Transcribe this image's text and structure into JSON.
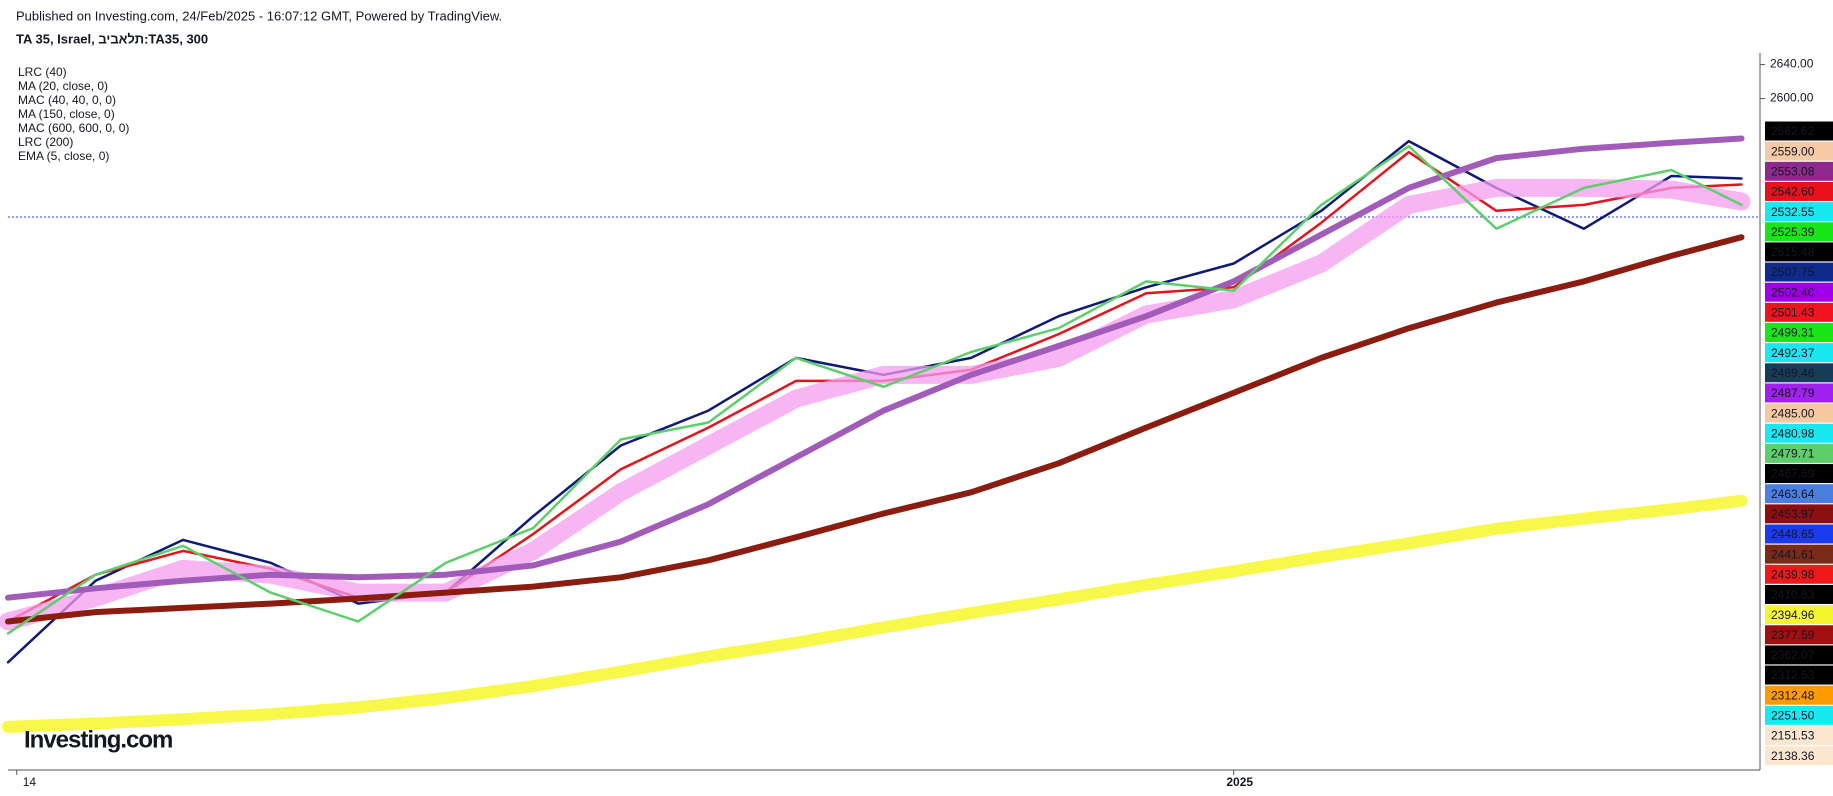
{
  "header": {
    "published": "Published on Investing.com, 24/Feb/2025 - 16:07:12 GMT, Powered by TradingView.",
    "symbol": "TA 35, Israel, תלאביב:TA35, 300"
  },
  "logo": "Investing.com",
  "chart_data": {
    "type": "line",
    "x": [
      0,
      5,
      10,
      15,
      20,
      25,
      30,
      35,
      40,
      45,
      50,
      55,
      60,
      65,
      70,
      75,
      80,
      85,
      90,
      95,
      99
    ],
    "xlim": [
      0,
      100
    ],
    "xticks": [
      {
        "value": 0.5,
        "label": "14"
      },
      {
        "value": 70,
        "label": "2025"
      }
    ],
    "ylim": [
      1812.7,
      2653.6
    ],
    "yticks": [
      {
        "value": 2600,
        "label": "2600.00"
      },
      {
        "value": 2640,
        "label": "2640.00"
      }
    ],
    "series": [
      {
        "name": "LRC (40)",
        "color": "#0d1a7a",
        "width": 2.5,
        "values": [
          1937,
          2033,
          2081,
          2054,
          2006,
          2019,
          2109,
          2192,
          2233,
          2295,
          2275,
          2295,
          2344,
          2378,
          2406,
          2468,
          2550,
          2495,
          2447,
          2509,
          2506
        ]
      },
      {
        "name": "MA (20, close, 0)",
        "color": "#e8131a",
        "width": 2.5,
        "values": [
          1985,
          2040,
          2068,
          2047,
          2013,
          2019,
          2088,
          2164,
          2213,
          2268,
          2268,
          2281,
          2323,
          2371,
          2378,
          2454,
          2537,
          2468,
          2475,
          2495,
          2499
        ]
      },
      {
        "name": "MAC (40, 40, 0, 0)",
        "color": "#f59cf0",
        "width": 18,
        "values": [
          1985,
          2013,
          2047,
          2040,
          2019,
          2019,
          2068,
          2137,
          2192,
          2247,
          2275,
          2275,
          2295,
          2346,
          2364,
          2406,
          2475,
          2495,
          2495,
          2493,
          2479
        ]
      },
      {
        "name": "MA (150, close, 0)",
        "color": "#a05cb8",
        "width": 6,
        "values": [
          2013,
          2024,
          2033,
          2040,
          2037,
          2040,
          2051,
          2079,
          2123,
          2178,
          2233,
          2275,
          2309,
          2344,
          2385,
          2440,
          2495,
          2530,
          2541,
          2548,
          2553
        ]
      },
      {
        "name": "MAC (600, 600, 0, 0)",
        "color": "#8b1c10",
        "width": 6,
        "values": [
          1985,
          1996,
          2001,
          2006,
          2012,
          2019,
          2026,
          2037,
          2057,
          2084,
          2112,
          2137,
          2171,
          2213,
          2254,
          2295,
          2330,
          2360,
          2385,
          2415,
          2437
        ]
      },
      {
        "name": "LRC (200)",
        "color": "#f8f84a",
        "width": 12,
        "values": [
          1861,
          1865,
          1870,
          1876,
          1884,
          1895,
          1909,
          1926,
          1944,
          1960,
          1978,
          1995,
          2011,
          2028,
          2044,
          2061,
          2077,
          2094,
          2106,
          2117,
          2127
        ]
      },
      {
        "name": "EMA (5, close, 0)",
        "color": "#5ccf6a",
        "width": 2.5,
        "values": [
          1971,
          2040,
          2074,
          2019,
          1985,
          2054,
          2095,
          2199,
          2219,
          2295,
          2261,
          2302,
          2330,
          2385,
          2374,
          2475,
          2544,
          2447,
          2495,
          2516,
          2475
        ]
      }
    ],
    "price_tags": [
      {
        "value": 2562.62,
        "color": "#000000"
      },
      {
        "value": 2559,
        "label": "2559.00",
        "color": "#f7c9a4"
      },
      {
        "value": 2553.08,
        "color": "#8e2a8e"
      },
      {
        "value": 2542.6,
        "label": "2542.60",
        "color": "#e8131a"
      },
      {
        "value": 2532.55,
        "color": "#18e8f0"
      },
      {
        "value": 2525.39,
        "color": "#19e619"
      },
      {
        "value": 2515.48,
        "color": "#000000"
      },
      {
        "value": 2507.75,
        "color": "#102a8c"
      },
      {
        "value": 2502.4,
        "label": "2502.40",
        "color": "#a000e8"
      },
      {
        "value": 2501.43,
        "color": "#f0141e"
      },
      {
        "value": 2499.31,
        "color": "#19e619"
      },
      {
        "value": 2492.37,
        "color": "#18e8f0"
      },
      {
        "value": 2489.46,
        "color": "#163c5a"
      },
      {
        "value": 2487.79,
        "color": "#a020f0"
      },
      {
        "value": 2485,
        "label": "2485.00",
        "color": "#f8c8a0"
      },
      {
        "value": 2480.98,
        "color": "#18e8f0"
      },
      {
        "value": 2479.71,
        "color": "#5ccf6a"
      },
      {
        "value": 2467.69,
        "color": "#000000"
      },
      {
        "value": 2463.64,
        "color": "#4a7ee0"
      },
      {
        "value": 2453.97,
        "color": "#8c1010"
      },
      {
        "value": 2448.65,
        "color": "#1a3cf0"
      },
      {
        "value": 2441.61,
        "color": "#7a2a18"
      },
      {
        "value": 2439.98,
        "color": "#f01818"
      },
      {
        "value": 2410.83,
        "color": "#000000"
      },
      {
        "value": 2394.96,
        "color": "#f5f530"
      },
      {
        "value": 2377.59,
        "color": "#a01010"
      },
      {
        "value": 2362.07,
        "color": "#000000"
      },
      {
        "value": 2312.53,
        "color": "#000000"
      },
      {
        "value": 2312.48,
        "color": "#ff9a00"
      },
      {
        "value": 2251.5,
        "label": "2251.50",
        "color": "#18e8f0"
      },
      {
        "value": 2151.53,
        "color": "#fde6d0"
      },
      {
        "value": 2138.36,
        "color": "#fde6d0"
      }
    ]
  }
}
